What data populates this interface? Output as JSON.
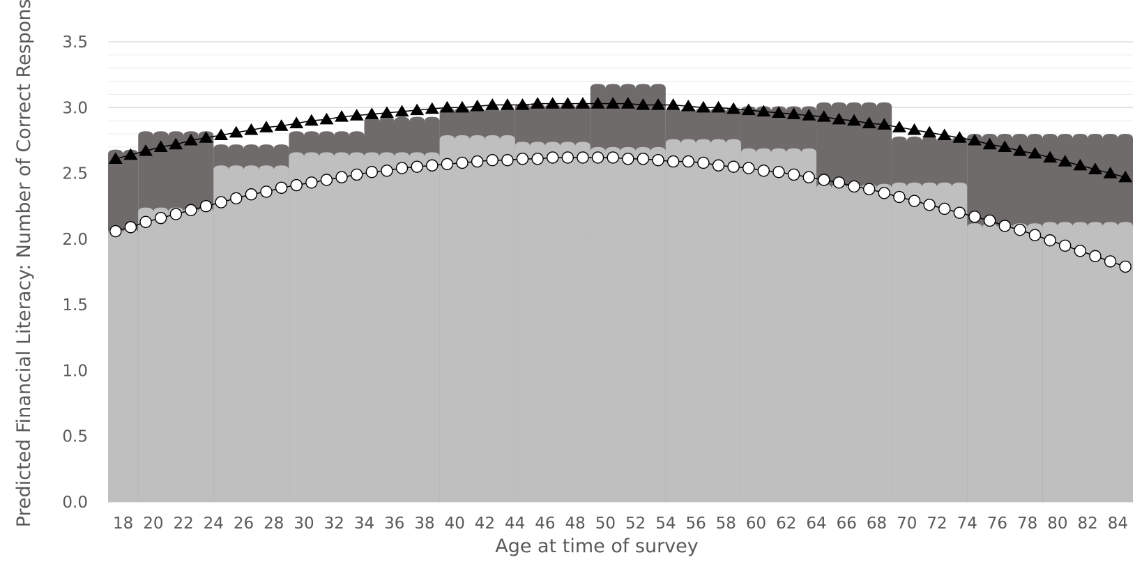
{
  "chart_data": {
    "type": "area",
    "title": "",
    "xlabel": "Age at time of survey",
    "ylabel": "Predicted Financial Literacy: Number of Correct Responses",
    "x_range": [
      18,
      85
    ],
    "x_tick_labels": [
      "18",
      "20",
      "22",
      "24",
      "26",
      "28",
      "30",
      "32",
      "34",
      "36",
      "38",
      "40",
      "42",
      "44",
      "46",
      "48",
      "50",
      "52",
      "54",
      "56",
      "58",
      "60",
      "62",
      "64",
      "66",
      "68",
      "70",
      "72",
      "74",
      "76",
      "78",
      "80",
      "82",
      "84"
    ],
    "ylim": [
      0,
      3.5
    ],
    "y_ticks": [
      0.0,
      0.5,
      1.0,
      1.5,
      2.0,
      2.5,
      3.0,
      3.5
    ],
    "y_tick_labels": [
      "0.0",
      "0.5",
      "1.0",
      "1.5",
      "2.0",
      "2.5",
      "3.0",
      "3.5"
    ],
    "grid": true,
    "legend": "none",
    "series": [
      {
        "kind": "step-area",
        "color": "#706b6b",
        "bins": [
          {
            "from": 18,
            "to": 19,
            "value": 2.68
          },
          {
            "from": 20,
            "to": 24,
            "value": 2.82
          },
          {
            "from": 25,
            "to": 29,
            "value": 2.72
          },
          {
            "from": 30,
            "to": 34,
            "value": 2.82
          },
          {
            "from": 35,
            "to": 39,
            "value": 2.93
          },
          {
            "from": 40,
            "to": 44,
            "value": 3.0
          },
          {
            "from": 45,
            "to": 49,
            "value": 3.03
          },
          {
            "from": 50,
            "to": 54,
            "value": 3.18
          },
          {
            "from": 55,
            "to": 59,
            "value": 3.0
          },
          {
            "from": 60,
            "to": 64,
            "value": 3.01
          },
          {
            "from": 65,
            "to": 69,
            "value": 3.04
          },
          {
            "from": 70,
            "to": 74,
            "value": 2.78
          },
          {
            "from": 75,
            "to": 85,
            "value": 2.8
          }
        ]
      },
      {
        "kind": "step-area",
        "color": "#bfbfbf",
        "bins": [
          {
            "from": 18,
            "to": 19,
            "value": 2.08
          },
          {
            "from": 20,
            "to": 24,
            "value": 2.24
          },
          {
            "from": 25,
            "to": 29,
            "value": 2.56
          },
          {
            "from": 30,
            "to": 34,
            "value": 2.66
          },
          {
            "from": 35,
            "to": 39,
            "value": 2.66
          },
          {
            "from": 40,
            "to": 44,
            "value": 2.79
          },
          {
            "from": 45,
            "to": 49,
            "value": 2.74
          },
          {
            "from": 50,
            "to": 54,
            "value": 2.7
          },
          {
            "from": 55,
            "to": 59,
            "value": 2.76
          },
          {
            "from": 60,
            "to": 64,
            "value": 2.69
          },
          {
            "from": 65,
            "to": 69,
            "value": 2.42
          },
          {
            "from": 70,
            "to": 74,
            "value": 2.43
          },
          {
            "from": 75,
            "to": 79,
            "value": 2.12
          },
          {
            "from": 80,
            "to": 85,
            "value": 2.13
          }
        ]
      },
      {
        "kind": "line-markers",
        "marker": "triangle",
        "color": "#000000",
        "x": [
          18,
          19,
          20,
          21,
          22,
          23,
          24,
          25,
          26,
          27,
          28,
          29,
          30,
          31,
          32,
          33,
          34,
          35,
          36,
          37,
          38,
          39,
          40,
          41,
          42,
          43,
          44,
          45,
          46,
          47,
          48,
          49,
          50,
          51,
          52,
          53,
          54,
          55,
          56,
          57,
          58,
          59,
          60,
          61,
          62,
          63,
          64,
          65,
          66,
          67,
          68,
          69,
          70,
          71,
          72,
          73,
          74,
          75,
          76,
          77,
          78,
          79,
          80,
          81,
          82,
          83,
          84,
          85
        ],
        "y": [
          2.61,
          2.64,
          2.67,
          2.7,
          2.72,
          2.75,
          2.77,
          2.79,
          2.81,
          2.83,
          2.85,
          2.86,
          2.88,
          2.9,
          2.91,
          2.93,
          2.94,
          2.95,
          2.96,
          2.97,
          2.98,
          2.99,
          3.0,
          3.0,
          3.01,
          3.02,
          3.02,
          3.02,
          3.03,
          3.03,
          3.03,
          3.03,
          3.03,
          3.03,
          3.03,
          3.02,
          3.02,
          3.02,
          3.01,
          3.0,
          3.0,
          2.99,
          2.98,
          2.97,
          2.96,
          2.95,
          2.94,
          2.93,
          2.91,
          2.9,
          2.88,
          2.87,
          2.85,
          2.83,
          2.81,
          2.79,
          2.77,
          2.75,
          2.72,
          2.7,
          2.67,
          2.65,
          2.62,
          2.59,
          2.56,
          2.53,
          2.5,
          2.47
        ]
      },
      {
        "kind": "line-markers",
        "marker": "circle",
        "color": "#000000",
        "x": [
          18,
          19,
          20,
          21,
          22,
          23,
          24,
          25,
          26,
          27,
          28,
          29,
          30,
          31,
          32,
          33,
          34,
          35,
          36,
          37,
          38,
          39,
          40,
          41,
          42,
          43,
          44,
          45,
          46,
          47,
          48,
          49,
          50,
          51,
          52,
          53,
          54,
          55,
          56,
          57,
          58,
          59,
          60,
          61,
          62,
          63,
          64,
          65,
          66,
          67,
          68,
          69,
          70,
          71,
          72,
          73,
          74,
          75,
          76,
          77,
          78,
          79,
          80,
          81,
          82,
          83,
          84,
          85
        ],
        "y": [
          2.06,
          2.09,
          2.13,
          2.16,
          2.19,
          2.22,
          2.25,
          2.28,
          2.31,
          2.34,
          2.36,
          2.39,
          2.41,
          2.43,
          2.45,
          2.47,
          2.49,
          2.51,
          2.52,
          2.54,
          2.55,
          2.56,
          2.57,
          2.58,
          2.59,
          2.6,
          2.6,
          2.61,
          2.61,
          2.62,
          2.62,
          2.62,
          2.62,
          2.62,
          2.61,
          2.61,
          2.6,
          2.59,
          2.59,
          2.58,
          2.56,
          2.55,
          2.54,
          2.52,
          2.51,
          2.49,
          2.47,
          2.45,
          2.43,
          2.4,
          2.38,
          2.35,
          2.32,
          2.29,
          2.26,
          2.23,
          2.2,
          2.17,
          2.14,
          2.1,
          2.07,
          2.03,
          1.99,
          1.95,
          1.91,
          1.87,
          1.83,
          1.79
        ]
      }
    ]
  }
}
